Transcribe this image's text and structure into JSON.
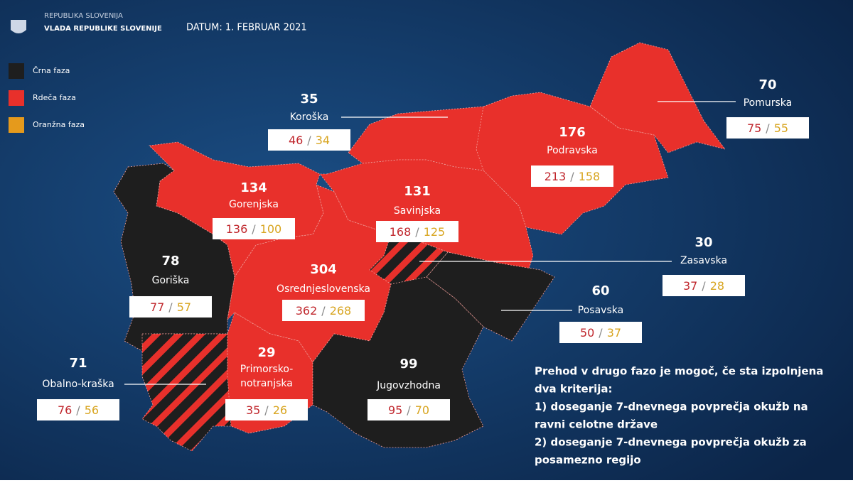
{
  "header": {
    "org_line1": "REPUBLIKA SLOVENIJA",
    "org_line2": "VLADA REPUBLIKE SLOVENIJE",
    "date": "DATUM: 1. FEBRUAR 2021"
  },
  "legend": [
    {
      "label": "Črna faza",
      "color": "#1e1e1e"
    },
    {
      "label": "Rdeča faza",
      "color": "#e8302b"
    },
    {
      "label": "Oranžna faza",
      "color": "#e59a1c"
    }
  ],
  "box_separator": "/",
  "regions": [
    {
      "name": "Koroška",
      "number": 35,
      "a": 46,
      "b": 34,
      "phase": "red"
    },
    {
      "name": "Pomurska",
      "number": 70,
      "a": 75,
      "b": 55,
      "phase": "red"
    },
    {
      "name": "Podravska",
      "number": 176,
      "a": 213,
      "b": 158,
      "phase": "red"
    },
    {
      "name": "Gorenjska",
      "number": 134,
      "a": 136,
      "b": 100,
      "phase": "red"
    },
    {
      "name": "Savinjska",
      "number": 131,
      "a": 168,
      "b": 125,
      "phase": "red"
    },
    {
      "name": "Zasavska",
      "number": 30,
      "a": 37,
      "b": 28,
      "phase": "hatched"
    },
    {
      "name": "Goriška",
      "number": 78,
      "a": 77,
      "b": 57,
      "phase": "black"
    },
    {
      "name": "Osrednjeslovenska",
      "number": 304,
      "a": 362,
      "b": 268,
      "phase": "red"
    },
    {
      "name": "Posavska",
      "number": 60,
      "a": 50,
      "b": 37,
      "phase": "black"
    },
    {
      "name": "Obalno-kraška",
      "number": 71,
      "a": 76,
      "b": 56,
      "phase": "hatched"
    },
    {
      "name": [
        "Primorsko-",
        "notranjska"
      ],
      "number": 29,
      "a": 35,
      "b": 26,
      "phase": "red"
    },
    {
      "name": "Jugovzhodna",
      "number": 99,
      "a": 95,
      "b": 70,
      "phase": "black"
    }
  ],
  "note": [
    "Prehod v drugo fazo je mogoč, če sta izpolnjena",
    "dva kriterija:",
    "1) doseganje 7-dnevnega povprečja okužb na",
    "ravni celotne države",
    "2) doseganje 7-dnevnega povprečja okužb za",
    "posamezno regijo"
  ]
}
